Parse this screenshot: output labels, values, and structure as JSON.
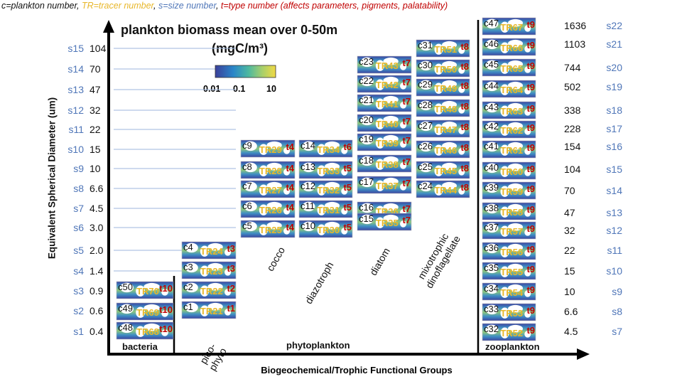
{
  "header": {
    "c": "c=plankton number",
    "tr": "TR=tracer number",
    "s": "s=size number",
    "t": "t=type number (affects parameters, pigments, palatability)"
  },
  "title": {
    "line1": "plankton biomass mean over 0-50m",
    "line2": "(mgC/m³)"
  },
  "colorbar": {
    "ticks": [
      "0.01",
      "0.1",
      "10"
    ],
    "colors": [
      "#3b3f9a",
      "#2a86c8",
      "#4db8a0",
      "#a8cf6b",
      "#f1da45"
    ]
  },
  "axis": {
    "ylabel": "Equivalent Spherical Diameter (um)",
    "xlabel": "Biogeochemical/Trophic Functional Groups"
  },
  "colors": {
    "s_label": "#4f76b8",
    "tr_label": "#e8b72a",
    "t_label": "#c00000",
    "gridline": "#9db6dc"
  },
  "left_sizes": [
    {
      "s": "s15",
      "um": "104"
    },
    {
      "s": "s14",
      "um": "70"
    },
    {
      "s": "s13",
      "um": "47"
    },
    {
      "s": "s12",
      "um": "32"
    },
    {
      "s": "s11",
      "um": "22"
    },
    {
      "s": "s10",
      "um": "15"
    },
    {
      "s": "s9",
      "um": "10"
    },
    {
      "s": "s8",
      "um": "6.6"
    },
    {
      "s": "s7",
      "um": "4.5"
    },
    {
      "s": "s6",
      "um": "3.0"
    },
    {
      "s": "s5",
      "um": "2.0"
    },
    {
      "s": "s4",
      "um": "1.4"
    },
    {
      "s": "s3",
      "um": "0.9"
    },
    {
      "s": "s2",
      "um": "0.6"
    },
    {
      "s": "s1",
      "um": "0.4"
    }
  ],
  "right_sizes": [
    {
      "s": "s22",
      "um": "1636"
    },
    {
      "s": "s21",
      "um": "1103"
    },
    {
      "s": "s20",
      "um": "744"
    },
    {
      "s": "s19",
      "um": "502"
    },
    {
      "s": "s18",
      "um": "338"
    },
    {
      "s": "s17",
      "um": "228"
    },
    {
      "s": "s16",
      "um": "154"
    },
    {
      "s": "s15",
      "um": "104"
    },
    {
      "s": "s14",
      "um": "70"
    },
    {
      "s": "s13",
      "um": "47"
    },
    {
      "s": "s12",
      "um": "32"
    },
    {
      "s": "s11",
      "um": "22"
    },
    {
      "s": "s10",
      "um": "15"
    },
    {
      "s": "s9",
      "um": "10"
    },
    {
      "s": "s8",
      "um": "6.6"
    },
    {
      "s": "s7",
      "um": "4.5"
    }
  ],
  "groups": [
    {
      "name": "bacteria",
      "tiles": [
        {
          "c": "c50",
          "tr": "TR70",
          "t": "t10"
        },
        {
          "c": "c49",
          "tr": "TR69",
          "t": "t10"
        },
        {
          "c": "c48",
          "tr": "TR68",
          "t": "t10"
        }
      ]
    },
    {
      "name": "pico-\nphyto",
      "tiles": [
        {
          "c": "c4",
          "tr": "TR24",
          "t": "t3"
        },
        {
          "c": "c3",
          "tr": "TR23",
          "t": "t3"
        },
        {
          "c": "c2",
          "tr": "TR22",
          "t": "t2"
        },
        {
          "c": "c1",
          "tr": "TR21",
          "t": "t1"
        }
      ]
    },
    {
      "name": "cocco",
      "tiles": [
        {
          "c": "c9",
          "tr": "TR29",
          "t": "t4"
        },
        {
          "c": "c8",
          "tr": "TR28",
          "t": "t4"
        },
        {
          "c": "c7",
          "tr": "TR27",
          "t": "t4"
        },
        {
          "c": "c6",
          "tr": "TR26",
          "t": "t4"
        },
        {
          "c": "c5",
          "tr": "TR25",
          "t": "t4"
        }
      ]
    },
    {
      "name": "diazotroph",
      "tiles": [
        {
          "c": "c14",
          "tr": "TR34",
          "t": "t6"
        },
        {
          "c": "c13",
          "tr": "TR33",
          "t": "t5"
        },
        {
          "c": "c12",
          "tr": "TR32",
          "t": "t5"
        },
        {
          "c": "c11",
          "tr": "TR31",
          "t": "t5"
        },
        {
          "c": "c10",
          "tr": "TR30",
          "t": "t5"
        }
      ]
    },
    {
      "name": "diatom",
      "tiles": [
        {
          "c": "c23",
          "tr": "TR43",
          "t": "t7"
        },
        {
          "c": "c22",
          "tr": "TR42",
          "t": "t7"
        },
        {
          "c": "c21",
          "tr": "TR41",
          "t": "t7"
        },
        {
          "c": "c20",
          "tr": "TR40",
          "t": "t7"
        },
        {
          "c": "c19",
          "tr": "TR39",
          "t": "t7"
        },
        {
          "c": "c18",
          "tr": "TR38",
          "t": "t7"
        },
        {
          "c": "c17",
          "tr": "TR37",
          "t": "t7"
        },
        {
          "c": "c16",
          "tr": "TR36",
          "t": "t7"
        },
        {
          "c": "c15",
          "tr": "TR35",
          "t": "t7"
        }
      ]
    },
    {
      "name": "mixotrophic\ndinoflagellate",
      "tiles": [
        {
          "c": "c31",
          "tr": "TR51",
          "t": "t8"
        },
        {
          "c": "c30",
          "tr": "TR50",
          "t": "t8"
        },
        {
          "c": "c29",
          "tr": "TR49",
          "t": "t8"
        },
        {
          "c": "c28",
          "tr": "TR48",
          "t": "t8"
        },
        {
          "c": "c27",
          "tr": "TR47",
          "t": "t8"
        },
        {
          "c": "c26",
          "tr": "TR46",
          "t": "t8"
        },
        {
          "c": "c25",
          "tr": "TR45",
          "t": "t8"
        },
        {
          "c": "c24",
          "tr": "TR44",
          "t": "t8"
        }
      ]
    },
    {
      "name": "zooplankton",
      "tiles": [
        {
          "c": "c47",
          "tr": "TR67",
          "t": "t9"
        },
        {
          "c": "c46",
          "tr": "TR66",
          "t": "t9"
        },
        {
          "c": "c45",
          "tr": "TR65",
          "t": "t9"
        },
        {
          "c": "c44",
          "tr": "TR64",
          "t": "t9"
        },
        {
          "c": "c43",
          "tr": "TR63",
          "t": "t9"
        },
        {
          "c": "c42",
          "tr": "TR62",
          "t": "t9"
        },
        {
          "c": "c41",
          "tr": "TR61",
          "t": "t9"
        },
        {
          "c": "c40",
          "tr": "TR60",
          "t": "t9"
        },
        {
          "c": "c39",
          "tr": "TR59",
          "t": "t9"
        },
        {
          "c": "c38",
          "tr": "TR58",
          "t": "t9"
        },
        {
          "c": "c37",
          "tr": "TR57",
          "t": "t9"
        },
        {
          "c": "c36",
          "tr": "TR56",
          "t": "t9"
        },
        {
          "c": "c35",
          "tr": "TR55",
          "t": "t9"
        },
        {
          "c": "c34",
          "tr": "TR54",
          "t": "t9"
        },
        {
          "c": "c33",
          "tr": "TR53",
          "t": "t9"
        },
        {
          "c": "c32",
          "tr": "TR52",
          "t": "t9"
        }
      ]
    }
  ],
  "phytoplankton_label": "phytoplankton"
}
